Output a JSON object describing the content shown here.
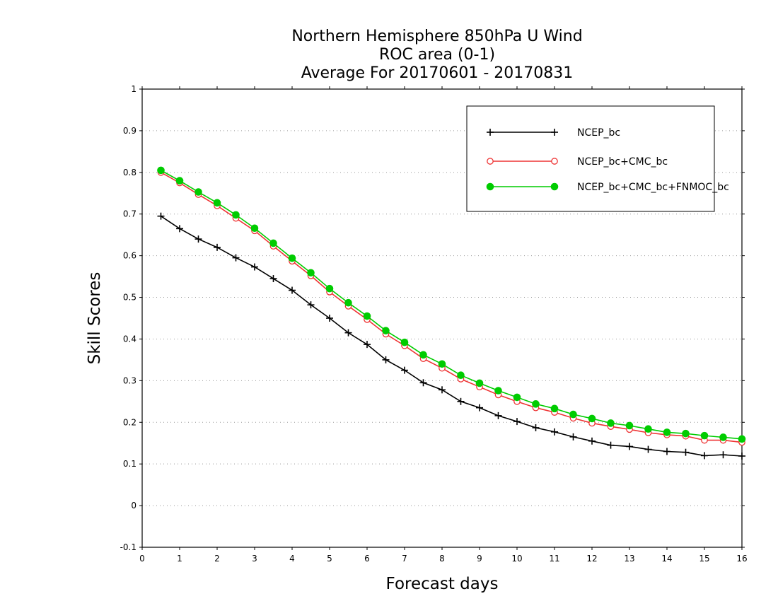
{
  "chart_data": {
    "type": "line",
    "title": [
      "Northern Hemisphere 850hPa U Wind",
      "ROC area (0-1)",
      "Average For 20170601 - 20170831"
    ],
    "xlabel": "Forecast days",
    "ylabel": "Skill Scores",
    "xlim": [
      0,
      16
    ],
    "ylim": [
      -0.1,
      1
    ],
    "xticks": [
      0,
      1,
      2,
      3,
      4,
      5,
      6,
      7,
      8,
      9,
      10,
      11,
      12,
      13,
      14,
      15,
      16
    ],
    "xtick_labels": [
      "0",
      "1",
      "2",
      "3",
      "4",
      "5",
      "6",
      "7",
      "8",
      "9",
      "10",
      "11",
      "12",
      "13",
      "14",
      "15",
      "16"
    ],
    "yticks": [
      -0.1,
      0,
      0.1,
      0.2,
      0.3,
      0.4,
      0.5,
      0.6,
      0.7,
      0.8,
      0.9,
      1
    ],
    "ytick_labels": [
      "-0.1",
      "0",
      "0.1",
      "0.2",
      "0.3",
      "0.4",
      "0.5",
      "0.6",
      "0.7",
      "0.8",
      "0.9",
      "1"
    ],
    "grid": "horizontal-dotted",
    "legend_position": "top-right",
    "x": [
      0.5,
      1,
      1.5,
      2,
      2.5,
      3,
      3.5,
      4,
      4.5,
      5,
      5.5,
      6,
      6.5,
      7,
      7.5,
      8,
      8.5,
      9,
      9.5,
      10,
      10.5,
      11,
      11.5,
      12,
      12.5,
      13,
      13.5,
      14,
      14.5,
      15,
      15.5,
      16
    ],
    "series": [
      {
        "name": "NCEP_bc",
        "color": "#000000",
        "marker": "plus",
        "values": [
          0.695,
          0.665,
          0.64,
          0.62,
          0.595,
          0.573,
          0.545,
          0.517,
          0.482,
          0.45,
          0.415,
          0.387,
          0.35,
          0.325,
          0.295,
          0.278,
          0.25,
          0.235,
          0.216,
          0.202,
          0.187,
          0.177,
          0.165,
          0.155,
          0.145,
          0.142,
          0.135,
          0.13,
          0.128,
          0.12,
          0.122,
          0.119
        ]
      },
      {
        "name": "NCEP_bc+CMC_bc",
        "color": "#ee3333",
        "marker": "open-circle",
        "values": [
          0.8,
          0.775,
          0.747,
          0.72,
          0.69,
          0.66,
          0.623,
          0.587,
          0.552,
          0.513,
          0.479,
          0.447,
          0.412,
          0.384,
          0.353,
          0.33,
          0.304,
          0.285,
          0.266,
          0.25,
          0.235,
          0.224,
          0.21,
          0.198,
          0.19,
          0.183,
          0.175,
          0.17,
          0.167,
          0.157,
          0.157,
          0.152
        ]
      },
      {
        "name": "NCEP_bc+CMC_bc+FNMOC_bc",
        "color": "#00cc00",
        "marker": "filled-circle",
        "values": [
          0.805,
          0.78,
          0.753,
          0.727,
          0.698,
          0.666,
          0.63,
          0.594,
          0.559,
          0.521,
          0.487,
          0.455,
          0.42,
          0.392,
          0.362,
          0.34,
          0.313,
          0.294,
          0.276,
          0.26,
          0.244,
          0.233,
          0.219,
          0.209,
          0.198,
          0.192,
          0.184,
          0.176,
          0.173,
          0.168,
          0.164,
          0.16
        ]
      }
    ]
  }
}
